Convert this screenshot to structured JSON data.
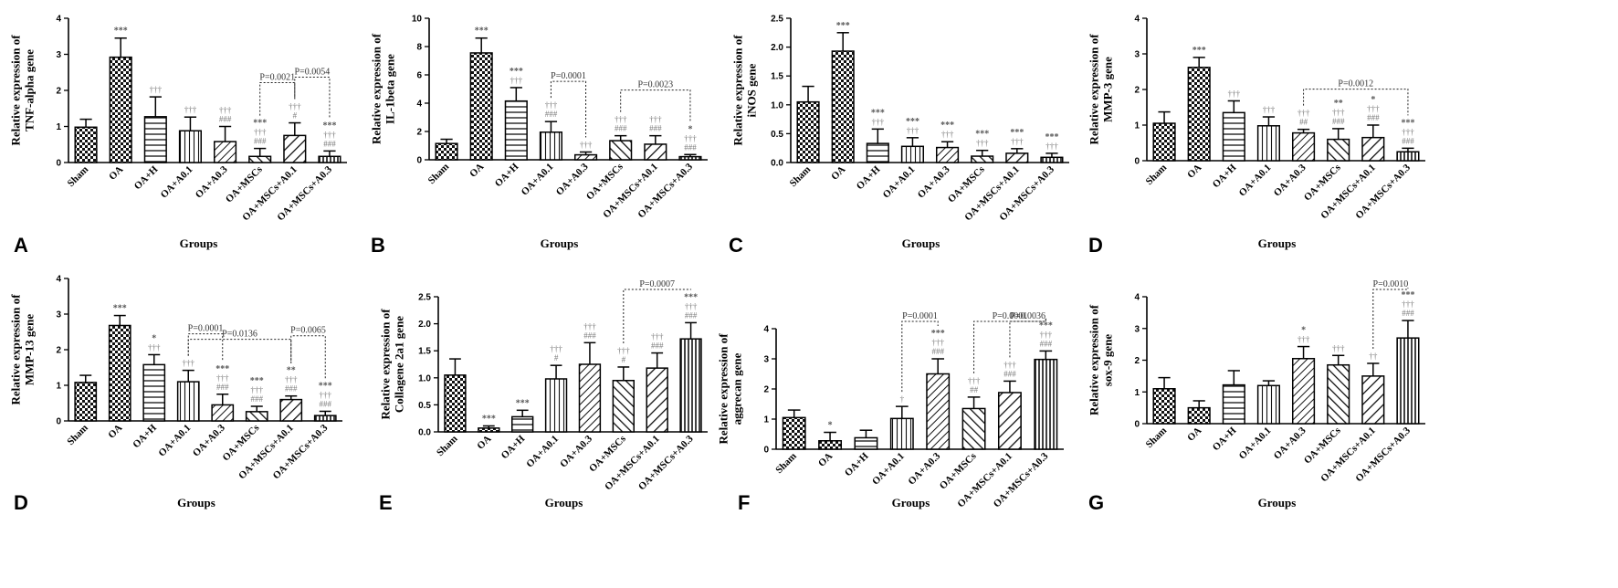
{
  "figure": {
    "groups_label": "Groups"
  },
  "chart_data": [
    {
      "type": "bar",
      "panel": "A",
      "ylabel": "Relative expression of\nTNF-alpha gene",
      "xlabel": "Groups",
      "categories": [
        "Sham",
        "OA",
        "OA+H",
        "OA+A0.1",
        "OA+A0.3",
        "OA+MSCs",
        "OA+MSCs+A0.1",
        "OA+MSCs+A0.3"
      ],
      "values": [
        0.98,
        2.92,
        1.27,
        0.88,
        0.58,
        0.17,
        0.75,
        0.17
      ],
      "errors": [
        0.22,
        0.53,
        0.55,
        0.38,
        0.42,
        0.22,
        0.35,
        0.15
      ],
      "ylim": [
        0,
        4
      ],
      "yticks": [
        0,
        1,
        2,
        3,
        4
      ],
      "sig": [
        [],
        [
          "***"
        ],
        [
          "†††"
        ],
        [
          "†††"
        ],
        [
          "†††",
          "###"
        ],
        [
          "***",
          "†††",
          "###"
        ],
        [
          "†††",
          "#"
        ],
        [
          "***",
          "†††",
          "###"
        ]
      ],
      "brackets": [
        {
          "from": 5,
          "to": 6,
          "label": "P=0.0021"
        },
        {
          "from": 6,
          "to": 7,
          "label": "P=0.0054"
        }
      ]
    },
    {
      "type": "bar",
      "panel": "B",
      "ylabel": "Relative expression of\nIL-1beta gene",
      "xlabel": "Groups",
      "categories": [
        "Sham",
        "OA",
        "OA+H",
        "OA+A0.1",
        "OA+A0.3",
        "OA+MSCs",
        "OA+MSCs+A0.1",
        "OA+MSCs+A0.3"
      ],
      "values": [
        1.15,
        7.55,
        4.15,
        1.95,
        0.35,
        1.35,
        1.1,
        0.22
      ],
      "errors": [
        0.3,
        1.05,
        0.95,
        0.75,
        0.2,
        0.35,
        0.6,
        0.15
      ],
      "ylim": [
        0,
        10
      ],
      "yticks": [
        0,
        2,
        4,
        6,
        8,
        10
      ],
      "sig": [
        [],
        [
          "***"
        ],
        [
          "***",
          "†††"
        ],
        [
          "†††",
          "###"
        ],
        [
          "†††"
        ],
        [
          "†††",
          "###"
        ],
        [
          "†††",
          "###"
        ],
        [
          "*",
          "†††",
          "###"
        ]
      ],
      "brackets": [
        {
          "from": 3,
          "to": 4,
          "label": "P=0.0001"
        },
        {
          "from": 5,
          "to": 7,
          "label": "P=0.0023"
        }
      ]
    },
    {
      "type": "bar",
      "panel": "C",
      "ylabel": "Relative expression of\niNOS gene",
      "xlabel": "Groups",
      "categories": [
        "Sham",
        "OA",
        "OA+H",
        "OA+A0.1",
        "OA+A0.3",
        "OA+MSCs",
        "OA+MSCs+A0.1",
        "OA+MSCs+A0.3"
      ],
      "values": [
        1.05,
        1.93,
        0.33,
        0.28,
        0.26,
        0.11,
        0.16,
        0.09
      ],
      "errors": [
        0.27,
        0.32,
        0.25,
        0.15,
        0.1,
        0.1,
        0.08,
        0.07
      ],
      "ylim": [
        0,
        2.5
      ],
      "yticks": [
        0.0,
        0.5,
        1.0,
        1.5,
        2.0,
        2.5
      ],
      "sig": [
        [],
        [
          "***"
        ],
        [
          "***",
          "†††"
        ],
        [
          "***",
          "†††"
        ],
        [
          "***",
          "†††"
        ],
        [
          "***",
          "†††"
        ],
        [
          "***",
          "†††"
        ],
        [
          "***",
          "†††"
        ]
      ],
      "brackets": []
    },
    {
      "type": "bar",
      "panel": "D",
      "ylabel": "Relative expression of\nMMP-3 gene",
      "xlabel": "Groups",
      "categories": [
        "Sham",
        "OA",
        "OA+H",
        "OA+A0.1",
        "OA+A0.3",
        "OA+MSCs",
        "OA+MSCs+A0.1",
        "OA+MSCs+A0.3"
      ],
      "values": [
        1.05,
        2.62,
        1.35,
        0.98,
        0.78,
        0.6,
        0.65,
        0.25
      ],
      "errors": [
        0.32,
        0.28,
        0.33,
        0.25,
        0.1,
        0.3,
        0.35,
        0.1
      ],
      "ylim": [
        0,
        4
      ],
      "yticks": [
        0,
        1,
        2,
        3,
        4
      ],
      "sig": [
        [],
        [
          "***"
        ],
        [
          "†††"
        ],
        [
          "†††"
        ],
        [
          "†††",
          "##"
        ],
        [
          "**",
          "†††",
          "###"
        ],
        [
          "*",
          "†††",
          "###"
        ],
        [
          "***",
          "†††",
          "###"
        ]
      ],
      "brackets": [
        {
          "from": 4,
          "to": 7,
          "label": "P=0.0012"
        }
      ]
    },
    {
      "type": "bar",
      "panel": "D",
      "ylabel": "Relative expression of\nMMP-13 gene",
      "xlabel": "Groups",
      "categories": [
        "Sham",
        "OA",
        "OA+H",
        "OA+A0.1",
        "OA+A0.3",
        "OA+MSCs",
        "OA+MSCs+A0.1",
        "OA+MSCs+A0.3"
      ],
      "values": [
        1.08,
        2.68,
        1.58,
        1.1,
        0.45,
        0.26,
        0.6,
        0.15
      ],
      "errors": [
        0.2,
        0.28,
        0.28,
        0.32,
        0.3,
        0.15,
        0.1,
        0.12
      ],
      "ylim": [
        0,
        4
      ],
      "yticks": [
        0,
        1,
        2,
        3,
        4
      ],
      "sig": [
        [],
        [
          "***"
        ],
        [
          "*",
          "†††"
        ],
        [
          "†††"
        ],
        [
          "***",
          "†††",
          "###"
        ],
        [
          "***",
          "†††",
          "###"
        ],
        [
          "**",
          "†††",
          "###"
        ],
        [
          "***",
          "†††",
          "###"
        ]
      ],
      "brackets": [
        {
          "from": 3,
          "to": 6,
          "label": "P=0.0136"
        },
        {
          "from": 3,
          "to": 4,
          "label": "P=0.0001"
        },
        {
          "from": 6,
          "to": 7,
          "label": "P=0.0065"
        }
      ]
    },
    {
      "type": "bar",
      "panel": "E",
      "ylabel": "Relative expression of\nCollagene 2a1 gene",
      "xlabel": "Groups",
      "categories": [
        "Sham",
        "OA",
        "OA+H",
        "OA+A0.1",
        "OA+A0.3",
        "OA+MSCs",
        "OA+MSCs+A0.1",
        "OA+MSCs+A0.3"
      ],
      "values": [
        1.05,
        0.07,
        0.28,
        0.98,
        1.25,
        0.95,
        1.18,
        1.72
      ],
      "errors": [
        0.3,
        0.04,
        0.12,
        0.25,
        0.4,
        0.25,
        0.28,
        0.3
      ],
      "ylim": [
        0,
        2.5
      ],
      "yticks": [
        0.0,
        0.5,
        1.0,
        1.5,
        2.0,
        2.5
      ],
      "sig": [
        [],
        [
          "***"
        ],
        [
          "***"
        ],
        [
          "†††",
          "#"
        ],
        [
          "†††",
          "###"
        ],
        [
          "†††",
          "#"
        ],
        [
          "†††",
          "###"
        ],
        [
          "***",
          "†††",
          "###"
        ]
      ],
      "brackets": [
        {
          "from": 5,
          "to": 7,
          "label": "P=0.0007"
        }
      ]
    },
    {
      "type": "bar",
      "panel": "F",
      "ylabel": "Relative expression of\naggrecan gene",
      "xlabel": "Groups",
      "categories": [
        "Sham",
        "OA",
        "OA+H",
        "OA+A0.1",
        "OA+A0.3",
        "OA+MSCs",
        "OA+MSCs+A0.1",
        "OA+MSCs+A0.3"
      ],
      "values": [
        1.05,
        0.28,
        0.38,
        1.02,
        2.5,
        1.35,
        1.88,
        2.98
      ],
      "errors": [
        0.25,
        0.28,
        0.25,
        0.4,
        0.5,
        0.38,
        0.38,
        0.28
      ],
      "ylim": [
        0,
        4
      ],
      "yticks": [
        0,
        1,
        2,
        3,
        4
      ],
      "sig": [
        [],
        [
          "*"
        ],
        [],
        [
          "†"
        ],
        [
          "***",
          "†††",
          "###"
        ],
        [
          "†††",
          "##"
        ],
        [
          "†††",
          "###"
        ],
        [
          "***",
          "†††",
          "###"
        ]
      ],
      "brackets": [
        {
          "from": 3,
          "to": 4,
          "label": "P=0.0001"
        },
        {
          "from": 5,
          "to": 7,
          "label": "P=0.0001"
        },
        {
          "from": 6,
          "to": 7,
          "label": "P=0.0036"
        }
      ]
    },
    {
      "type": "bar",
      "panel": "G",
      "ylabel": "Relative expression of\nsox-9 gene",
      "xlabel": "Groups",
      "categories": [
        "Sham",
        "OA",
        "OA+H",
        "OA+A0.1",
        "OA+A0.3",
        "OA+MSCs",
        "OA+MSCs+A0.1",
        "OA+MSCs+A0.3"
      ],
      "values": [
        1.1,
        0.5,
        1.22,
        1.2,
        2.05,
        1.85,
        1.5,
        2.7
      ],
      "errors": [
        0.35,
        0.22,
        0.45,
        0.15,
        0.38,
        0.3,
        0.4,
        0.55
      ],
      "ylim": [
        0,
        4
      ],
      "yticks": [
        0,
        1,
        2,
        3,
        4
      ],
      "sig": [
        [],
        [],
        [],
        [],
        [
          "*",
          "†††"
        ],
        [
          "†††"
        ],
        [
          "††"
        ],
        [
          "***",
          "†††",
          "###"
        ]
      ],
      "brackets": [
        {
          "from": 6,
          "to": 7,
          "label": "P=0.0010"
        }
      ]
    }
  ]
}
